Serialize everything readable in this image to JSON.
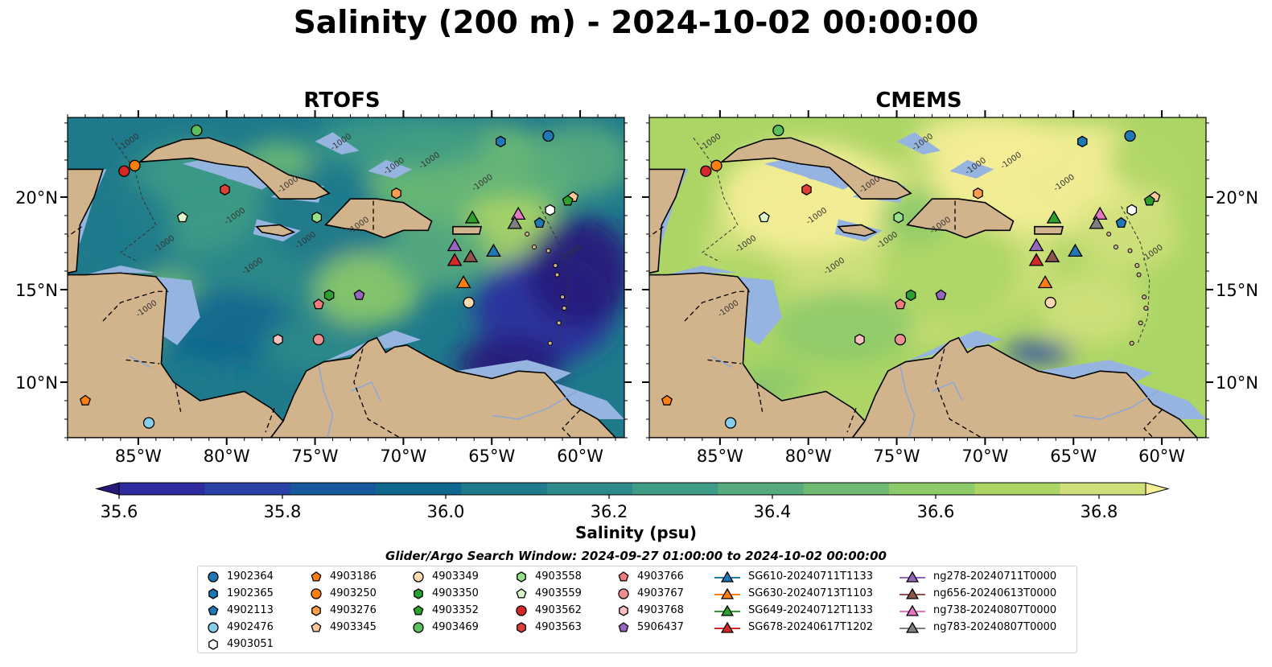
{
  "title": "Salinity (200 m) - 2024-10-02 00:00:00",
  "panels": [
    {
      "title": "RTOFS"
    },
    {
      "title": "CMEMS"
    }
  ],
  "map": {
    "lon_range": [
      -89,
      -57.5
    ],
    "lat_range": [
      7,
      24.3
    ],
    "lon_ticks": [
      "85°W",
      "80°W",
      "75°W",
      "70°W",
      "65°W",
      "60°W"
    ],
    "lat_ticks": [
      "10°N",
      "15°N",
      "20°N"
    ],
    "contour_label": "-1000",
    "colors": {
      "land": "#d2b48c",
      "shelf": "#96b4e0",
      "coast": "#000000",
      "rivers": "#8aa8d8"
    }
  },
  "colorbar": {
    "label": "Salinity (psu)",
    "range": [
      35.5,
      37.0
    ],
    "ticks": [
      "35.6",
      "35.8",
      "36.0",
      "36.2",
      "36.4",
      "36.6",
      "36.8"
    ],
    "colors": [
      "#27197a",
      "#2e2ba0",
      "#2a42a8",
      "#17579c",
      "#10678f",
      "#1f7a8c",
      "#2d8a88",
      "#3e9b85",
      "#56ab7d",
      "#6fbb73",
      "#8dca69",
      "#acd566",
      "#cfe07b",
      "#f6ee98"
    ]
  },
  "search_window": "Glider/Argo Search Window: 2024-09-27 01:00:00 to 2024-10-02 00:00:00",
  "legend": {
    "argo": [
      {
        "label": "1902364",
        "marker": "circle",
        "color": "#1f77b4",
        "lon": -61.8,
        "lat": 23.3
      },
      {
        "label": "1902365",
        "marker": "hexagon",
        "color": "#1f77b4",
        "lon": -64.5,
        "lat": 23.0
      },
      {
        "label": "4902113",
        "marker": "pentagon",
        "color": "#1f77b4",
        "lon": -62.3,
        "lat": 18.6
      },
      {
        "label": "4902476",
        "marker": "circle",
        "color": "#87ceeb",
        "lon": -84.4,
        "lat": 7.8
      },
      {
        "label": "4903051",
        "marker": "hexagon",
        "color": "#ffffff",
        "lon": -61.7,
        "lat": 19.3
      },
      {
        "label": "4903186",
        "marker": "pentagon",
        "color": "#ff7f0e",
        "lon": -88.0,
        "lat": 9.0
      },
      {
        "label": "4903250",
        "marker": "circle",
        "color": "#ff7f0e",
        "lon": -85.2,
        "lat": 21.7
      },
      {
        "label": "4903276",
        "marker": "hexagon",
        "color": "#ff9e4a",
        "lon": -70.4,
        "lat": 20.2
      },
      {
        "label": "4903345",
        "marker": "pentagon",
        "color": "#ffc999",
        "lon": -60.4,
        "lat": 20.0
      },
      {
        "label": "4903349",
        "marker": "circle",
        "color": "#ffd9b0",
        "lon": -66.3,
        "lat": 14.3
      },
      {
        "label": "4903350",
        "marker": "hexagon",
        "color": "#2ca02c",
        "lon": -74.2,
        "lat": 14.7
      },
      {
        "label": "4903352",
        "marker": "pentagon",
        "color": "#2ca02c",
        "lon": -60.7,
        "lat": 19.8
      },
      {
        "label": "4903469",
        "marker": "circle",
        "color": "#5cbf5c",
        "lon": -81.7,
        "lat": 23.6
      },
      {
        "label": "4903558",
        "marker": "hexagon",
        "color": "#98df8a",
        "lon": -74.9,
        "lat": 18.9
      },
      {
        "label": "4903559",
        "marker": "pentagon",
        "color": "#d9f5c9",
        "lon": -82.5,
        "lat": 18.9
      },
      {
        "label": "4903562",
        "marker": "circle",
        "color": "#d62728",
        "lon": -85.8,
        "lat": 21.4
      },
      {
        "label": "4903563",
        "marker": "hexagon",
        "color": "#e0403a",
        "lon": -80.1,
        "lat": 20.4
      },
      {
        "label": "4903766",
        "marker": "pentagon",
        "color": "#f07b7b",
        "lon": -74.8,
        "lat": 14.2
      },
      {
        "label": "4903767",
        "marker": "circle",
        "color": "#f08f8f",
        "lon": -74.8,
        "lat": 12.3
      },
      {
        "label": "4903768",
        "marker": "hexagon",
        "color": "#f8c0c0",
        "lon": -77.1,
        "lat": 12.3
      },
      {
        "label": "5906437",
        "marker": "pentagon",
        "color": "#9467bd",
        "lon": -72.5,
        "lat": 14.7
      }
    ],
    "gliders": [
      {
        "label": "SG610-20240711T1133",
        "color": "#1f77b4",
        "lon": -64.9,
        "lat": 17.1
      },
      {
        "label": "SG630-20240713T1103",
        "color": "#ff7f0e",
        "lon": -66.6,
        "lat": 15.4
      },
      {
        "label": "SG649-20240712T1133",
        "color": "#2ca02c",
        "lon": -66.1,
        "lat": 18.9
      },
      {
        "label": "SG678-20240617T1202",
        "color": "#d62728",
        "lon": -67.1,
        "lat": 16.6
      },
      {
        "label": "ng278-20240711T0000",
        "color": "#9467bd",
        "lon": -67.1,
        "lat": 17.4
      },
      {
        "label": "ng656-20240613T0000",
        "color": "#8c564b",
        "lon": -66.2,
        "lat": 16.8
      },
      {
        "label": "ng738-20240807T0000",
        "color": "#e377c2",
        "lon": -63.5,
        "lat": 19.1
      },
      {
        "label": "ng783-20240807T0000",
        "color": "#7f7f7f",
        "lon": -63.7,
        "lat": 18.6
      }
    ]
  }
}
